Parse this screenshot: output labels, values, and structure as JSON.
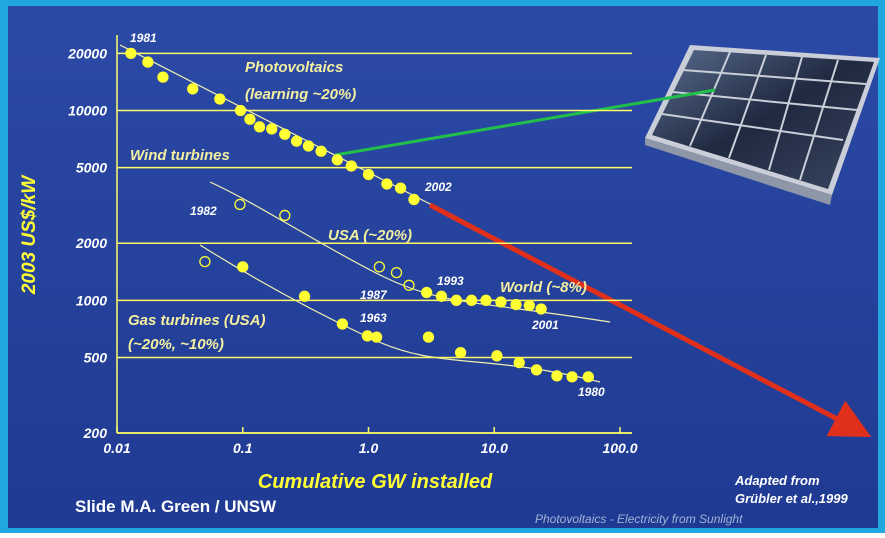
{
  "chart_data": {
    "type": "scatter",
    "y_label": "2003 US$/kW",
    "x_label": "Cumulative GW installed",
    "log_x": true,
    "log_y": true,
    "grid": true,
    "xlim": [
      0.01,
      100
    ],
    "ylim": [
      200,
      25000
    ],
    "xticks": [
      0.01,
      0.1,
      {
        "value": 1,
        "label": "1.0"
      },
      {
        "value": 10,
        "label": "10.0"
      },
      {
        "value": 100,
        "label": "100.0"
      }
    ],
    "yticks": [
      200,
      500,
      1000,
      2000,
      5000,
      10000,
      20000
    ],
    "series": [
      {
        "color": "#ffff33",
        "marker": "filled",
        "x": [
          0.0129,
          0.0176,
          0.0232,
          0.04,
          0.0657,
          0.096,
          0.114,
          0.136,
          0.17,
          0.216,
          0.268,
          0.333,
          0.42,
          0.565,
          0.73,
          1.0,
          1.4,
          1.8,
          2.3
        ],
        "values": [
          20000,
          18000,
          15000,
          13000,
          11500,
          10000,
          9000,
          8200,
          8000,
          7500,
          6900,
          6500,
          6100,
          5500,
          5100,
          4600,
          4100,
          3900,
          3400
        ]
      },
      {
        "color": "#ffff33",
        "marker": "open",
        "x": [
          0.095,
          0.216,
          1.22,
          1.67,
          2.1
        ],
        "values": [
          3200,
          2800,
          1500,
          1400,
          1200
        ]
      },
      {
        "color": "#ffff33",
        "marker": "filled",
        "x": [
          2.9,
          3.8,
          5.0,
          6.6,
          8.6,
          11.3,
          14.9,
          19,
          23.6
        ],
        "values": [
          1100,
          1050,
          1000,
          1000,
          1000,
          980,
          950,
          940,
          900
        ]
      },
      {
        "color": "#ffff33",
        "marker": "open",
        "x": [
          0.05
        ],
        "values": [
          1600
        ]
      },
      {
        "color": "#ffff33",
        "marker": "filled",
        "x": [
          0.1,
          0.31,
          0.62,
          0.98,
          1.16,
          3.0,
          5.4,
          10.5,
          15.8,
          21.7,
          31.5,
          41.6,
          56
        ],
        "values": [
          1500,
          1050,
          750,
          650,
          640,
          640,
          530,
          510,
          470,
          430,
          400,
          395,
          395
        ]
      }
    ],
    "annotations": [
      "1981",
      "Photovoltaics",
      "(learning ~20%)",
      "Wind turbines",
      "2002",
      "1982",
      "USA (~20%)",
      "1993",
      "World (~8%)",
      "1987",
      "2001",
      "1963",
      "Gas turbines (USA)",
      "(~20%, ~10%)",
      "1980"
    ]
  },
  "credits": {
    "slide": "Slide M.A. Green /  UNSW",
    "adapted_1": "Adapted from",
    "adapted_2": "Grübler et al.,1999",
    "footer": "Photovoltaics - Electricity from Sunlight"
  }
}
